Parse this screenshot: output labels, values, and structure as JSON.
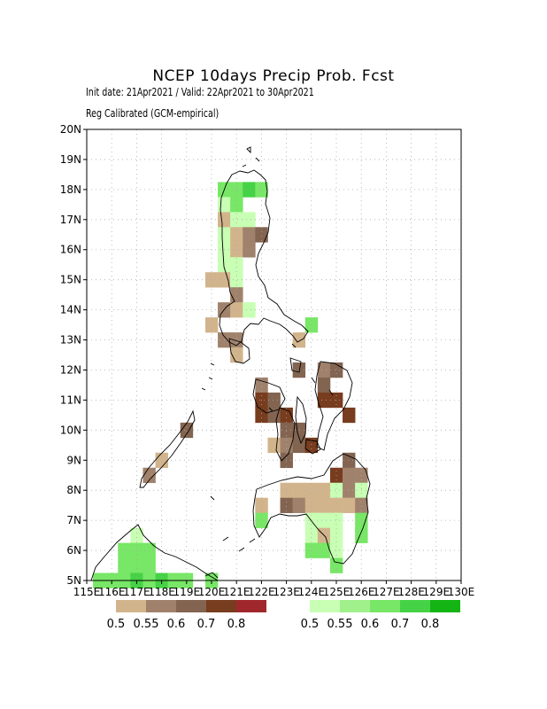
{
  "title": "NCEP 10days Precip Prob. Fcst",
  "subtitle_dates": "Init date: 21Apr2021 / Valid: 22Apr2021 to 30Apr2021",
  "subtitle_method": "Reg Calibrated (GCM-empirical)",
  "map": {
    "lon_range": [
      115,
      130
    ],
    "lat_range": [
      5,
      20
    ],
    "grid": true,
    "lat_ticks": [
      "5N",
      "6N",
      "7N",
      "8N",
      "9N",
      "10N",
      "11N",
      "12N",
      "13N",
      "14N",
      "15N",
      "16N",
      "17N",
      "18N",
      "19N",
      "20N"
    ],
    "lon_ticks": [
      "115E",
      "116E",
      "117E",
      "118E",
      "119E",
      "120E",
      "121E",
      "122E",
      "123E",
      "124E",
      "125E",
      "126E",
      "127E",
      "128E",
      "129E",
      "130E"
    ]
  },
  "legend": {
    "dry": {
      "colors": [
        "#d2b48c",
        "#a0826c",
        "#826450",
        "#783c1e",
        "#a0282d"
      ],
      "labels": [
        "0.5",
        "0.55",
        "0.6",
        "0.7",
        "0.8"
      ]
    },
    "wet": {
      "colors": [
        "#c8ffb4",
        "#a0f08c",
        "#78e666",
        "#46d246",
        "#14b414"
      ],
      "labels": [
        "0.5",
        "0.55",
        "0.6",
        "0.7",
        "0.8"
      ]
    }
  },
  "cells": [
    {
      "lon": 120.5,
      "lat": 18.0,
      "c": "w2"
    },
    {
      "lon": 121.0,
      "lat": 18.0,
      "c": "w2"
    },
    {
      "lon": 121.5,
      "lat": 18.0,
      "c": "w3"
    },
    {
      "lon": 122.0,
      "lat": 18.0,
      "c": "w2"
    },
    {
      "lon": 120.5,
      "lat": 17.5,
      "c": "w0"
    },
    {
      "lon": 121.0,
      "lat": 17.5,
      "c": "w2"
    },
    {
      "lon": 120.5,
      "lat": 17.0,
      "c": "d0"
    },
    {
      "lon": 121.0,
      "lat": 17.0,
      "c": "w0"
    },
    {
      "lon": 121.5,
      "lat": 17.0,
      "c": "w0"
    },
    {
      "lon": 120.5,
      "lat": 16.5,
      "c": "w0"
    },
    {
      "lon": 121.0,
      "lat": 16.5,
      "c": "d0"
    },
    {
      "lon": 121.5,
      "lat": 16.5,
      "c": "d1"
    },
    {
      "lon": 122.0,
      "lat": 16.5,
      "c": "d2"
    },
    {
      "lon": 120.5,
      "lat": 16.0,
      "c": "w0"
    },
    {
      "lon": 121.0,
      "lat": 16.0,
      "c": "d0"
    },
    {
      "lon": 121.5,
      "lat": 16.0,
      "c": "d1"
    },
    {
      "lon": 120.5,
      "lat": 15.5,
      "c": "w0"
    },
    {
      "lon": 121.0,
      "lat": 15.5,
      "c": "w0"
    },
    {
      "lon": 120.0,
      "lat": 15.0,
      "c": "d0"
    },
    {
      "lon": 120.5,
      "lat": 15.0,
      "c": "d0"
    },
    {
      "lon": 121.0,
      "lat": 15.0,
      "c": "w0"
    },
    {
      "lon": 121.0,
      "lat": 14.5,
      "c": "d1"
    },
    {
      "lon": 120.5,
      "lat": 14.0,
      "c": "d1"
    },
    {
      "lon": 121.0,
      "lat": 14.0,
      "c": "d0"
    },
    {
      "lon": 121.5,
      "lat": 14.0,
      "c": "w0"
    },
    {
      "lon": 120.0,
      "lat": 13.5,
      "c": "d0"
    },
    {
      "lon": 124.0,
      "lat": 13.5,
      "c": "w2"
    },
    {
      "lon": 120.5,
      "lat": 13.0,
      "c": "d1"
    },
    {
      "lon": 121.0,
      "lat": 13.0,
      "c": "d1"
    },
    {
      "lon": 123.5,
      "lat": 13.0,
      "c": "d0"
    },
    {
      "lon": 121.0,
      "lat": 12.5,
      "c": "d0"
    },
    {
      "lon": 123.5,
      "lat": 12.0,
      "c": "d2"
    },
    {
      "lon": 124.5,
      "lat": 12.0,
      "c": "d1"
    },
    {
      "lon": 125.0,
      "lat": 12.0,
      "c": "d2"
    },
    {
      "lon": 122.0,
      "lat": 11.5,
      "c": "d1"
    },
    {
      "lon": 124.5,
      "lat": 11.5,
      "c": "d2"
    },
    {
      "lon": 122.0,
      "lat": 11.0,
      "c": "d3"
    },
    {
      "lon": 122.5,
      "lat": 11.0,
      "c": "d2"
    },
    {
      "lon": 124.5,
      "lat": 11.0,
      "c": "d3"
    },
    {
      "lon": 125.0,
      "lat": 11.0,
      "c": "d3"
    },
    {
      "lon": 122.0,
      "lat": 10.5,
      "c": "d3"
    },
    {
      "lon": 122.5,
      "lat": 10.5,
      "c": "d2"
    },
    {
      "lon": 123.0,
      "lat": 10.5,
      "c": "d3"
    },
    {
      "lon": 125.5,
      "lat": 10.5,
      "c": "d3"
    },
    {
      "lon": 123.0,
      "lat": 10.0,
      "c": "d2"
    },
    {
      "lon": 123.5,
      "lat": 10.0,
      "c": "d2"
    },
    {
      "lon": 119.0,
      "lat": 10.0,
      "c": "d2"
    },
    {
      "lon": 122.5,
      "lat": 9.5,
      "c": "d0"
    },
    {
      "lon": 123.0,
      "lat": 9.5,
      "c": "d1"
    },
    {
      "lon": 123.5,
      "lat": 9.5,
      "c": "d2"
    },
    {
      "lon": 124.0,
      "lat": 9.5,
      "c": "d3"
    },
    {
      "lon": 118.0,
      "lat": 9.0,
      "c": "d0"
    },
    {
      "lon": 123.0,
      "lat": 9.0,
      "c": "d2"
    },
    {
      "lon": 125.5,
      "lat": 9.0,
      "c": "d2"
    },
    {
      "lon": 117.5,
      "lat": 8.5,
      "c": "d1"
    },
    {
      "lon": 125.0,
      "lat": 8.5,
      "c": "d3"
    },
    {
      "lon": 125.5,
      "lat": 8.5,
      "c": "d1"
    },
    {
      "lon": 126.0,
      "lat": 8.5,
      "c": "d1"
    },
    {
      "lon": 123.0,
      "lat": 8.0,
      "c": "d0"
    },
    {
      "lon": 123.5,
      "lat": 8.0,
      "c": "d0"
    },
    {
      "lon": 124.0,
      "lat": 8.0,
      "c": "d0"
    },
    {
      "lon": 124.5,
      "lat": 8.0,
      "c": "d0"
    },
    {
      "lon": 125.0,
      "lat": 8.0,
      "c": "w0"
    },
    {
      "lon": 125.5,
      "lat": 8.0,
      "c": "d1"
    },
    {
      "lon": 126.0,
      "lat": 8.0,
      "c": "w0"
    },
    {
      "lon": 122.0,
      "lat": 7.5,
      "c": "d0"
    },
    {
      "lon": 123.0,
      "lat": 7.5,
      "c": "d2"
    },
    {
      "lon": 123.5,
      "lat": 7.5,
      "c": "d1"
    },
    {
      "lon": 124.0,
      "lat": 7.5,
      "c": "d0"
    },
    {
      "lon": 124.5,
      "lat": 7.5,
      "c": "d0"
    },
    {
      "lon": 125.0,
      "lat": 7.5,
      "c": "d0"
    },
    {
      "lon": 125.5,
      "lat": 7.5,
      "c": "d0"
    },
    {
      "lon": 126.0,
      "lat": 7.5,
      "c": "d1"
    },
    {
      "lon": 122.0,
      "lat": 7.0,
      "c": "w2"
    },
    {
      "lon": 124.0,
      "lat": 7.0,
      "c": "w0"
    },
    {
      "lon": 124.5,
      "lat": 7.0,
      "c": "w0"
    },
    {
      "lon": 125.0,
      "lat": 7.0,
      "c": "w0"
    },
    {
      "lon": 126.0,
      "lat": 7.0,
      "c": "w2"
    },
    {
      "lon": 117.0,
      "lat": 6.5,
      "c": "w0"
    },
    {
      "lon": 124.0,
      "lat": 6.5,
      "c": "w0"
    },
    {
      "lon": 124.5,
      "lat": 6.5,
      "c": "d0"
    },
    {
      "lon": 125.0,
      "lat": 6.5,
      "c": "w0"
    },
    {
      "lon": 126.0,
      "lat": 6.5,
      "c": "w2"
    },
    {
      "lon": 116.5,
      "lat": 6.0,
      "c": "w2"
    },
    {
      "lon": 117.0,
      "lat": 6.0,
      "c": "w2"
    },
    {
      "lon": 117.5,
      "lat": 6.0,
      "c": "w2"
    },
    {
      "lon": 124.0,
      "lat": 6.0,
      "c": "w2"
    },
    {
      "lon": 124.5,
      "lat": 6.0,
      "c": "w2"
    },
    {
      "lon": 125.0,
      "lat": 6.0,
      "c": "w0"
    },
    {
      "lon": 116.5,
      "lat": 5.5,
      "c": "w2"
    },
    {
      "lon": 117.0,
      "lat": 5.5,
      "c": "w2"
    },
    {
      "lon": 117.5,
      "lat": 5.5,
      "c": "w2"
    },
    {
      "lon": 125.0,
      "lat": 5.5,
      "c": "w2"
    },
    {
      "lon": 115.5,
      "lat": 5.0,
      "c": "w2"
    },
    {
      "lon": 116.0,
      "lat": 5.0,
      "c": "w2"
    },
    {
      "lon": 116.5,
      "lat": 5.0,
      "c": "w2"
    },
    {
      "lon": 117.0,
      "lat": 5.0,
      "c": "w3"
    },
    {
      "lon": 117.5,
      "lat": 5.0,
      "c": "w2"
    },
    {
      "lon": 118.0,
      "lat": 5.0,
      "c": "w3"
    },
    {
      "lon": 118.5,
      "lat": 5.0,
      "c": "w2"
    },
    {
      "lon": 119.0,
      "lat": 5.0,
      "c": "w2"
    },
    {
      "lon": 120.0,
      "lat": 5.0,
      "c": "w2"
    }
  ]
}
